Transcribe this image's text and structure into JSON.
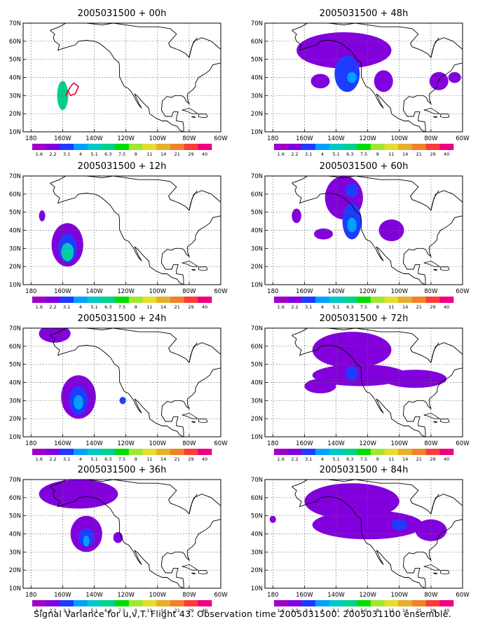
{
  "caption": "Signal Variance for u,v,T. Flight 43. Observation time 2005031500. 2005031100 ensemble.",
  "colorbar": {
    "levels": [
      "1.6",
      "2.2",
      "3.1",
      "4",
      "5.1",
      "6.3",
      "7.5",
      "9",
      "11",
      "14",
      "21",
      "29",
      "40"
    ],
    "colors": [
      "#a000c8",
      "#8200dc",
      "#1e3cff",
      "#00a0ff",
      "#00c8c8",
      "#00d28c",
      "#00dc00",
      "#a0e632",
      "#e6dc32",
      "#e6af2d",
      "#f08228",
      "#fa3c3c",
      "#f00082"
    ]
  },
  "axes": {
    "x_ticks": [
      "180",
      "160W",
      "140W",
      "120W",
      "100W",
      "80W",
      "60W"
    ],
    "y_ticks": [
      "10N",
      "20N",
      "30N",
      "40N",
      "50N",
      "60N",
      "70N"
    ]
  },
  "chart_data": [
    {
      "type": "heatmap",
      "title": "2005031500 + 00h",
      "x_range": [
        -185,
        -60
      ],
      "y_range": [
        10,
        70
      ],
      "blobs": [
        {
          "lon": -160,
          "lat": 30,
          "rlon": 3.5,
          "rlat": 8,
          "level": 5
        },
        {
          "lon": -160,
          "lat": 27,
          "rlon": 2,
          "rlat": 4,
          "level": 4
        },
        {
          "lon": -160,
          "lat": 36,
          "rlon": 2,
          "rlat": 2,
          "level": 2
        }
      ],
      "annotation": "flight track"
    },
    {
      "type": "heatmap",
      "title": "2005031500 + 48h",
      "x_range": [
        -185,
        -60
      ],
      "y_range": [
        10,
        70
      ],
      "blobs": [
        {
          "lon": -135,
          "lat": 55,
          "rlon": 30,
          "rlat": 10,
          "level": 1
        },
        {
          "lon": -133,
          "lat": 42,
          "rlon": 8,
          "rlat": 10,
          "level": 2
        },
        {
          "lon": -130,
          "lat": 40,
          "rlon": 3,
          "rlat": 3,
          "level": 3
        },
        {
          "lon": -150,
          "lat": 38,
          "rlon": 6,
          "rlat": 4,
          "level": 1
        },
        {
          "lon": -110,
          "lat": 38,
          "rlon": 6,
          "rlat": 6,
          "level": 1
        },
        {
          "lon": -75,
          "lat": 38,
          "rlon": 6,
          "rlat": 5,
          "level": 1
        },
        {
          "lon": -65,
          "lat": 40,
          "rlon": 4,
          "rlat": 3,
          "level": 1
        }
      ]
    },
    {
      "type": "heatmap",
      "title": "2005031500 + 12h",
      "x_range": [
        -185,
        -60
      ],
      "y_range": [
        10,
        70
      ],
      "blobs": [
        {
          "lon": -157,
          "lat": 32,
          "rlon": 10,
          "rlat": 12,
          "level": 1
        },
        {
          "lon": -157,
          "lat": 30,
          "rlon": 6,
          "rlat": 8,
          "level": 2
        },
        {
          "lon": -157,
          "lat": 28,
          "rlon": 4,
          "rlat": 5,
          "level": 4
        },
        {
          "lon": -157,
          "lat": 26,
          "rlon": 2,
          "rlat": 3,
          "level": 5
        },
        {
          "lon": -173,
          "lat": 48,
          "rlon": 2,
          "rlat": 3,
          "level": 1
        }
      ]
    },
    {
      "type": "heatmap",
      "title": "2005031500 + 60h",
      "x_range": [
        -185,
        -60
      ],
      "y_range": [
        10,
        70
      ],
      "blobs": [
        {
          "lon": -135,
          "lat": 58,
          "rlon": 12,
          "rlat": 12,
          "level": 1
        },
        {
          "lon": -130,
          "lat": 62,
          "rlon": 4,
          "rlat": 4,
          "level": 2
        },
        {
          "lon": -130,
          "lat": 45,
          "rlon": 6,
          "rlat": 10,
          "level": 2
        },
        {
          "lon": -130,
          "lat": 43,
          "rlon": 3,
          "rlat": 4,
          "level": 3
        },
        {
          "lon": -105,
          "lat": 40,
          "rlon": 8,
          "rlat": 6,
          "level": 1
        },
        {
          "lon": -148,
          "lat": 38,
          "rlon": 6,
          "rlat": 3,
          "level": 1
        },
        {
          "lon": -165,
          "lat": 48,
          "rlon": 3,
          "rlat": 4,
          "level": 1
        }
      ]
    },
    {
      "type": "heatmap",
      "title": "2005031500 + 24h",
      "x_range": [
        -185,
        -60
      ],
      "y_range": [
        10,
        70
      ],
      "blobs": [
        {
          "lon": -150,
          "lat": 32,
          "rlon": 11,
          "rlat": 12,
          "level": 1
        },
        {
          "lon": -150,
          "lat": 30,
          "rlon": 6,
          "rlat": 8,
          "level": 2
        },
        {
          "lon": -150,
          "lat": 29,
          "rlon": 3,
          "rlat": 4,
          "level": 3
        },
        {
          "lon": -165,
          "lat": 67,
          "rlon": 10,
          "rlat": 5,
          "level": 1
        },
        {
          "lon": -122,
          "lat": 30,
          "rlon": 2,
          "rlat": 2,
          "level": 2
        }
      ]
    },
    {
      "type": "heatmap",
      "title": "2005031500 + 72h",
      "x_range": [
        -185,
        -60
      ],
      "y_range": [
        10,
        70
      ],
      "blobs": [
        {
          "lon": -130,
          "lat": 58,
          "rlon": 25,
          "rlat": 10,
          "level": 1
        },
        {
          "lon": -125,
          "lat": 44,
          "rlon": 30,
          "rlat": 6,
          "level": 1
        },
        {
          "lon": -130,
          "lat": 45,
          "rlon": 4,
          "rlat": 4,
          "level": 2
        },
        {
          "lon": -150,
          "lat": 38,
          "rlon": 10,
          "rlat": 4,
          "level": 1
        },
        {
          "lon": -90,
          "lat": 42,
          "rlon": 20,
          "rlat": 5,
          "level": 1
        }
      ]
    },
    {
      "type": "heatmap",
      "title": "2005031500 + 36h",
      "x_range": [
        -185,
        -60
      ],
      "y_range": [
        10,
        70
      ],
      "blobs": [
        {
          "lon": -145,
          "lat": 40,
          "rlon": 10,
          "rlat": 10,
          "level": 1
        },
        {
          "lon": -145,
          "lat": 38,
          "rlon": 5,
          "rlat": 5,
          "level": 2
        },
        {
          "lon": -145,
          "lat": 36,
          "rlon": 2,
          "rlat": 3,
          "level": 3
        },
        {
          "lon": -150,
          "lat": 62,
          "rlon": 25,
          "rlat": 8,
          "level": 1
        },
        {
          "lon": -125,
          "lat": 38,
          "rlon": 3,
          "rlat": 3,
          "level": 1
        }
      ]
    },
    {
      "type": "heatmap",
      "title": "2005031500 + 84h",
      "x_range": [
        -185,
        -60
      ],
      "y_range": [
        10,
        70
      ],
      "blobs": [
        {
          "lon": -130,
          "lat": 58,
          "rlon": 30,
          "rlat": 10,
          "level": 1
        },
        {
          "lon": -120,
          "lat": 45,
          "rlon": 35,
          "rlat": 8,
          "level": 1
        },
        {
          "lon": -100,
          "lat": 45,
          "rlon": 5,
          "rlat": 3,
          "level": 2
        },
        {
          "lon": -80,
          "lat": 42,
          "rlon": 10,
          "rlat": 6,
          "level": 1
        },
        {
          "lon": -180,
          "lat": 48,
          "rlon": 2,
          "rlat": 2,
          "level": 1
        }
      ]
    }
  ]
}
